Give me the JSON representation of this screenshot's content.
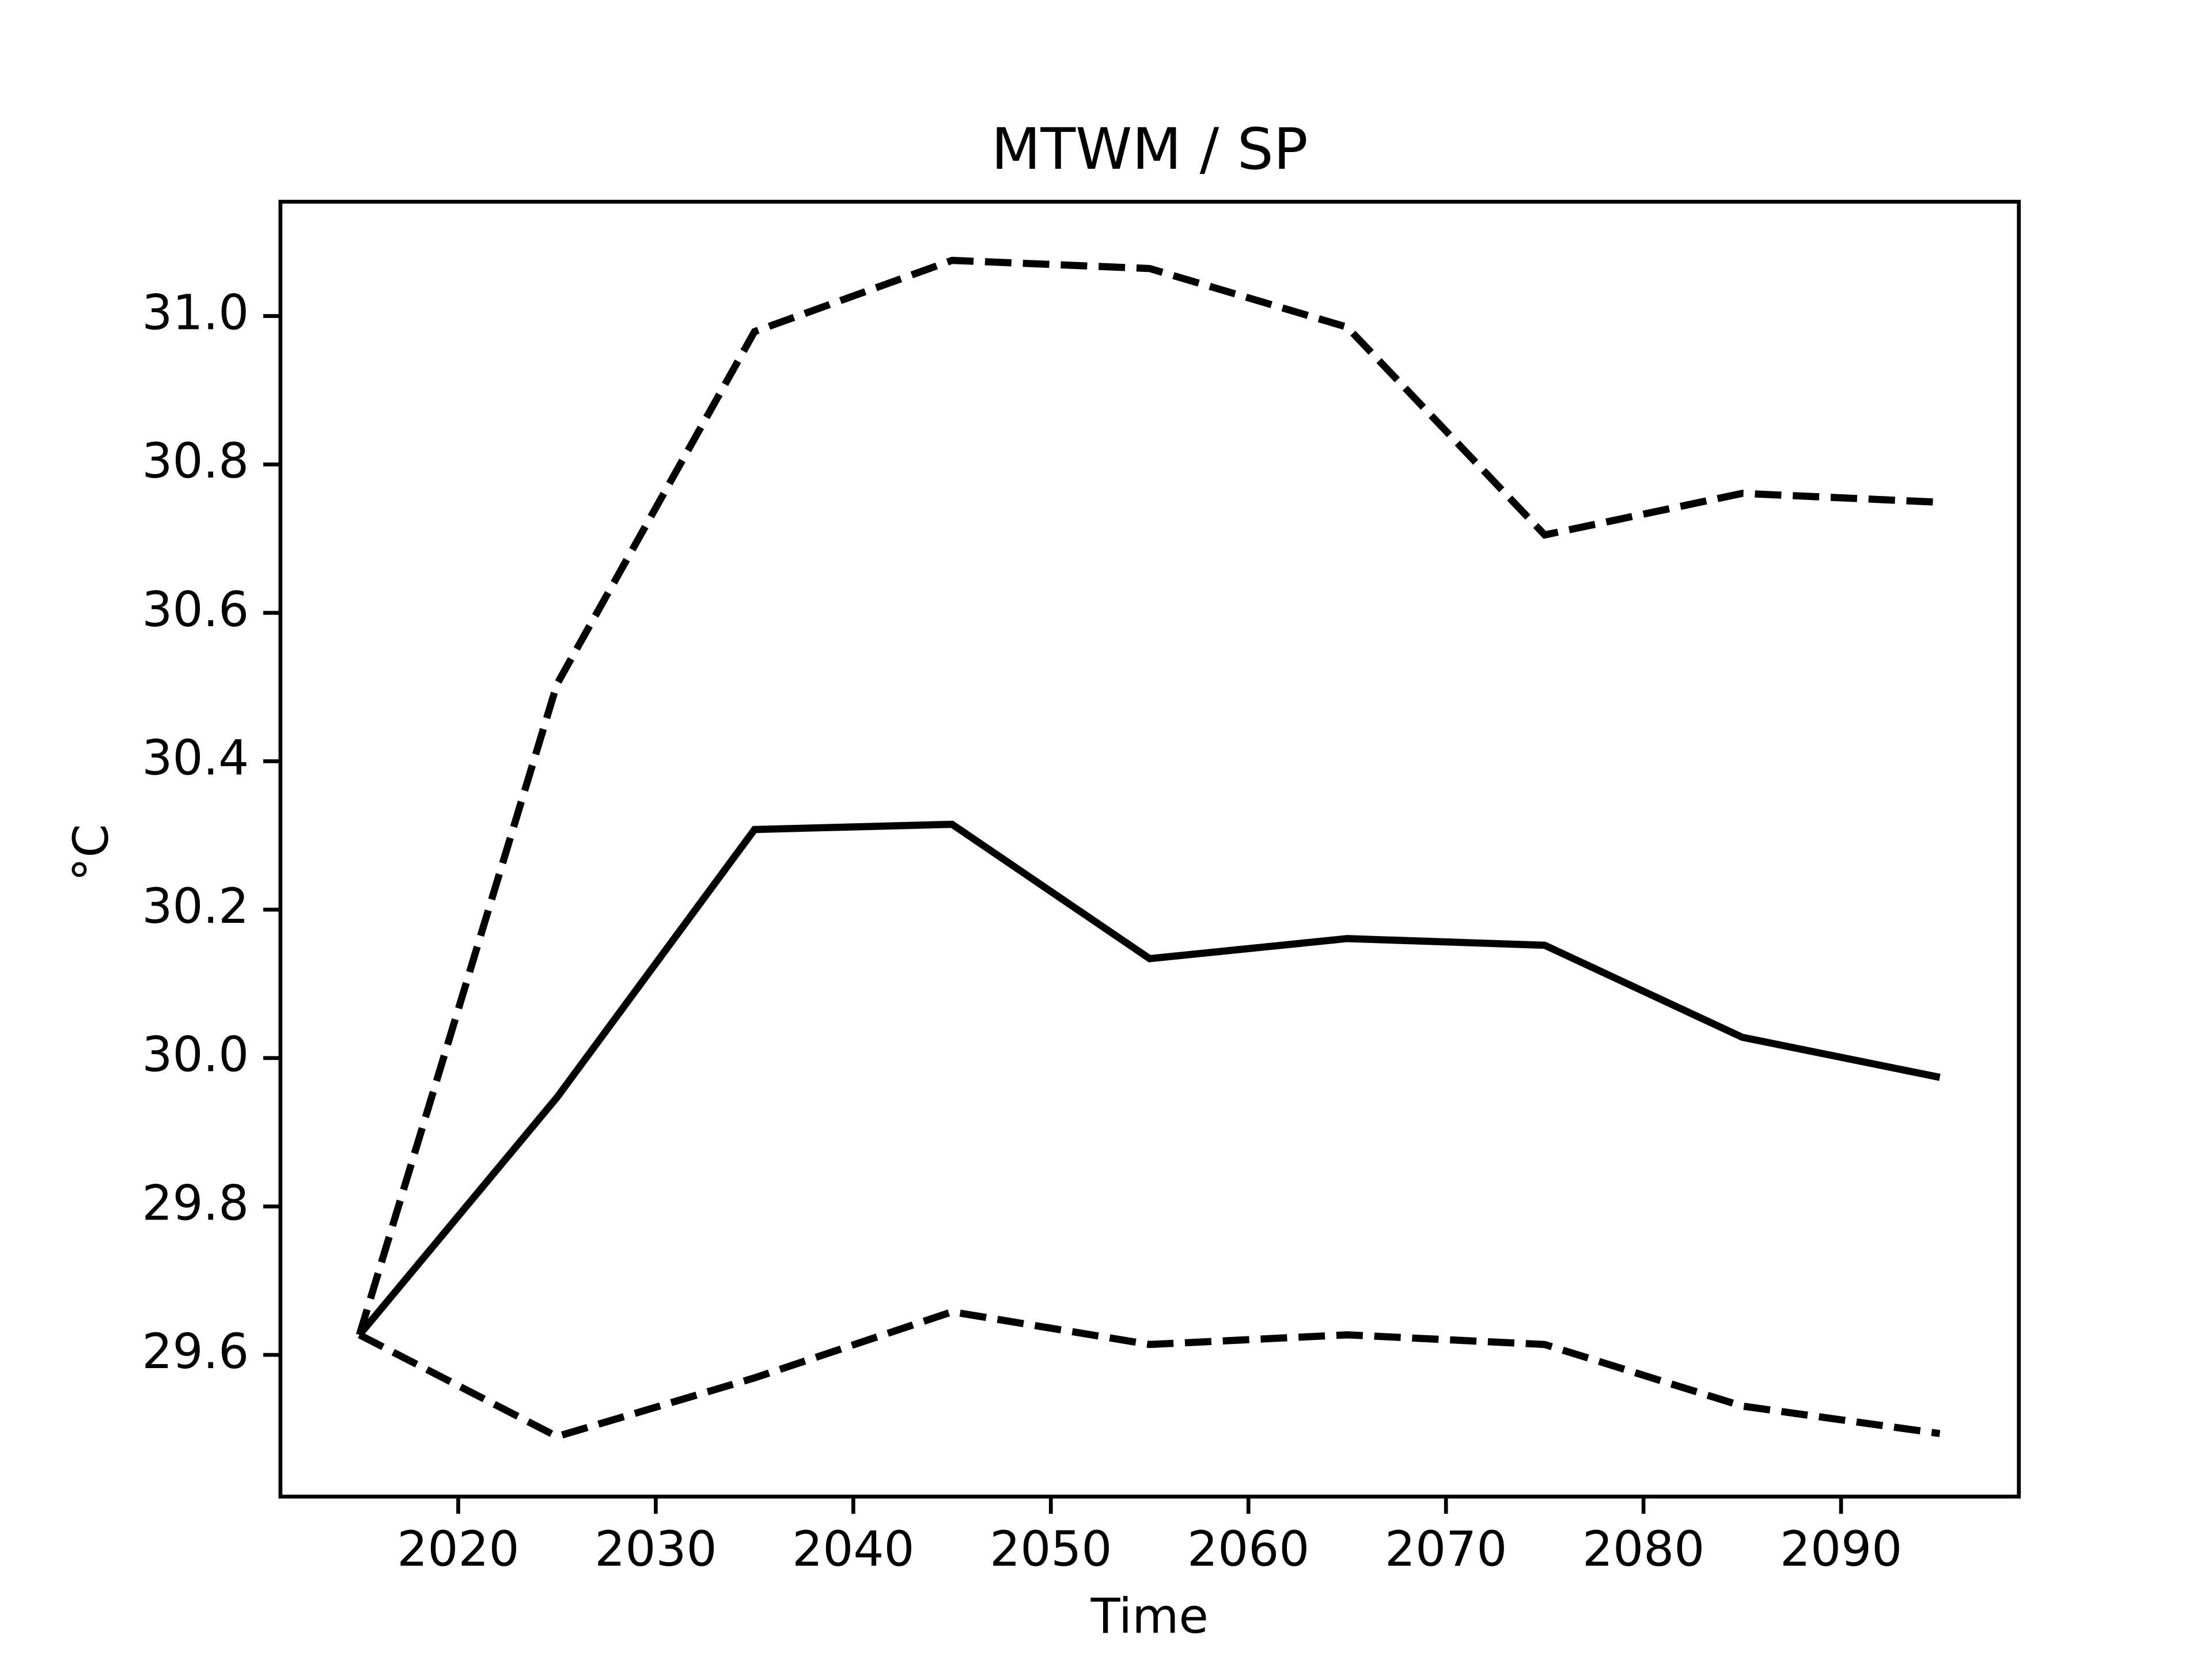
{
  "chart_data": {
    "type": "line",
    "title": "MTWM / SP",
    "x_label": "Time",
    "y_label": "°C",
    "x": [
      2015,
      2025,
      2035,
      2045,
      2055,
      2065,
      2075,
      2085,
      2095
    ],
    "series": [
      {
        "color": "#000000",
        "dash": "solid",
        "values": [
          29.627,
          29.947,
          30.308,
          30.315,
          30.134,
          30.161,
          30.152,
          30.028,
          29.974
        ]
      },
      {
        "color": "#000000",
        "dash": "dashed",
        "values": [
          29.627,
          30.504,
          30.979,
          31.075,
          31.064,
          30.985,
          30.705,
          30.761,
          30.749
        ]
      },
      {
        "color": "#000000",
        "dash": "dashed",
        "values": [
          29.627,
          29.49,
          29.569,
          29.658,
          29.614,
          29.627,
          29.614,
          29.531,
          29.494
        ]
      }
    ],
    "xlim": [
      2011,
      2099
    ],
    "ylim": [
      29.409,
      31.154
    ],
    "xticks": [
      2020,
      2030,
      2040,
      2050,
      2060,
      2070,
      2080,
      2090
    ],
    "yticks": [
      29.6,
      29.8,
      {
        "value": 30,
        "label": "30.0"
      },
      30.2,
      30.4,
      30.6,
      30.8,
      {
        "value": 31,
        "label": "31.0"
      }
    ],
    "grid": false
  }
}
